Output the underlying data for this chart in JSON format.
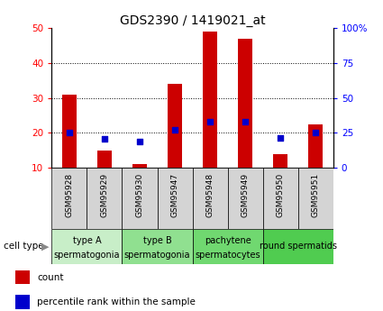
{
  "title": "GDS2390 / 1419021_at",
  "samples": [
    "GSM95928",
    "GSM95929",
    "GSM95930",
    "GSM95947",
    "GSM95948",
    "GSM95949",
    "GSM95950",
    "GSM95951"
  ],
  "counts": [
    31.0,
    15.0,
    11.0,
    34.0,
    49.0,
    47.0,
    14.0,
    22.5
  ],
  "count_bottom": [
    10,
    10,
    10,
    10,
    10,
    10,
    10,
    10
  ],
  "percentile_ranks": [
    25.0,
    20.5,
    19.0,
    27.0,
    33.0,
    33.0,
    21.5,
    25.0
  ],
  "cell_types": [
    {
      "label": "type A\nspermatogonia",
      "span": [
        0,
        2
      ],
      "color": "#c8eec8"
    },
    {
      "label": "type B\nspermatogonia",
      "span": [
        2,
        4
      ],
      "color": "#90e090"
    },
    {
      "label": "pachytene\nspermatocytes",
      "span": [
        4,
        6
      ],
      "color": "#70d870"
    },
    {
      "label": "round spermatids",
      "span": [
        6,
        8
      ],
      "color": "#50cc50"
    }
  ],
  "ylim_left": [
    10,
    50
  ],
  "ylim_right": [
    0,
    100
  ],
  "yticks_left": [
    10,
    20,
    30,
    40,
    50
  ],
  "yticks_right": [
    0,
    25,
    50,
    75,
    100
  ],
  "ytick_labels_right": [
    "0",
    "25",
    "50",
    "75",
    "100%"
  ],
  "bar_color": "#cc0000",
  "dot_color": "#0000cc",
  "bar_width": 0.4,
  "title_fontsize": 10,
  "tick_fontsize": 7.5,
  "sample_fontsize": 6.5,
  "cell_type_fontsize": 7,
  "legend_fontsize": 7.5
}
